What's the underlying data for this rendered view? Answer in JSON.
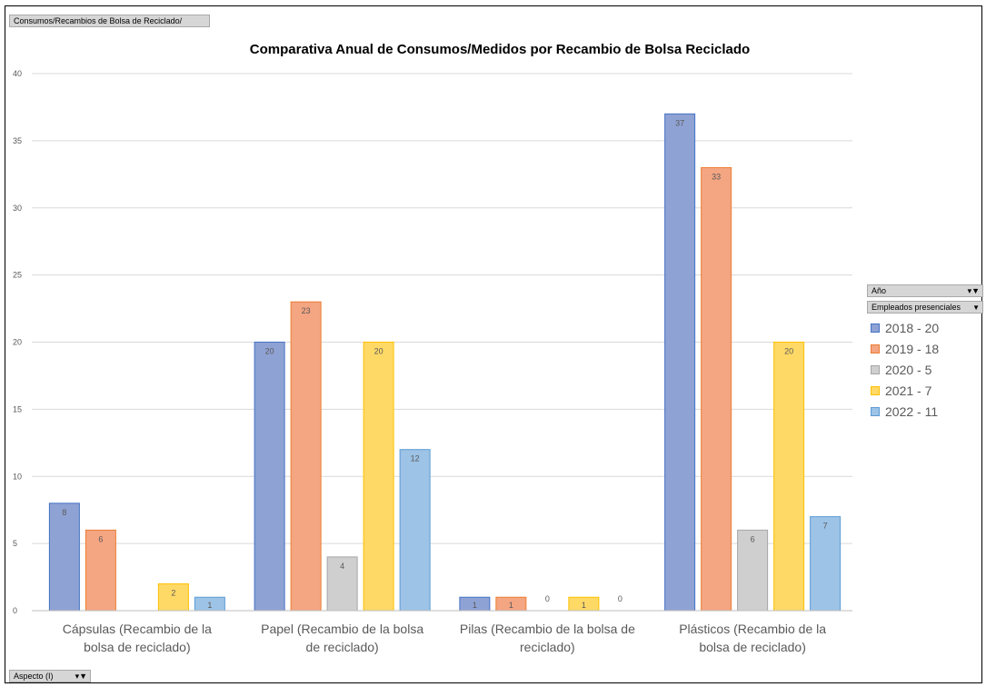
{
  "filter_field": {
    "label": "Consumos/Recambios de Bolsa de Reciclado/"
  },
  "aspect_field": {
    "label": "Aspecto (I)"
  },
  "legend_panel": {
    "year_label": "Año",
    "employees_label": "Empleados presenciales",
    "items": [
      "2018 - 20",
      "2019 - 18",
      "2020 - 5",
      "2021 - 7",
      "2022 - 11"
    ]
  },
  "chart_data": {
    "type": "bar",
    "title": "Comparativa Anual de Consumos/Medidos por Recambio de Bolsa Reciclado",
    "xlabel": "",
    "ylabel": "",
    "ylim": [
      0,
      40
    ],
    "yticks": [
      0,
      5,
      10,
      15,
      20,
      25,
      30,
      35,
      40
    ],
    "grid": true,
    "legend_position": "right",
    "categories": [
      [
        "Cápsulas (Recambio de la",
        "bolsa de reciclado)"
      ],
      [
        "Papel (Recambio de la bolsa",
        "de reciclado)"
      ],
      [
        "Pilas (Recambio de la bolsa de",
        "reciclado)"
      ],
      [
        "Plásticos (Recambio de la",
        "bolsa de reciclado)"
      ]
    ],
    "series": [
      {
        "name": "2018 - 20",
        "values": [
          8,
          20,
          1,
          37
        ],
        "labels": [
          "8",
          "20",
          "1",
          "37"
        ],
        "fill": "#8fa2d4",
        "stroke": "#4472c4"
      },
      {
        "name": "2019 - 18",
        "values": [
          6,
          23,
          1,
          33
        ],
        "labels": [
          "6",
          "23",
          "1",
          "33"
        ],
        "fill": "#f4a582",
        "stroke": "#ed7d31"
      },
      {
        "name": "2020 - 5",
        "values": [
          0,
          4,
          0,
          6
        ],
        "labels": [
          "",
          "4",
          "0",
          "6"
        ],
        "fill": "#cfcfcf",
        "stroke": "#a5a5a5"
      },
      {
        "name": "2021 - 7",
        "values": [
          2,
          20,
          1,
          20
        ],
        "labels": [
          "2",
          "20",
          "1",
          "20"
        ],
        "fill": "#ffd966",
        "stroke": "#ffc000"
      },
      {
        "name": "2022 - 11",
        "values": [
          1,
          12,
          0,
          7
        ],
        "labels": [
          "1",
          "12",
          "0",
          "7"
        ],
        "fill": "#9dc3e6",
        "stroke": "#5b9bd5"
      }
    ]
  }
}
